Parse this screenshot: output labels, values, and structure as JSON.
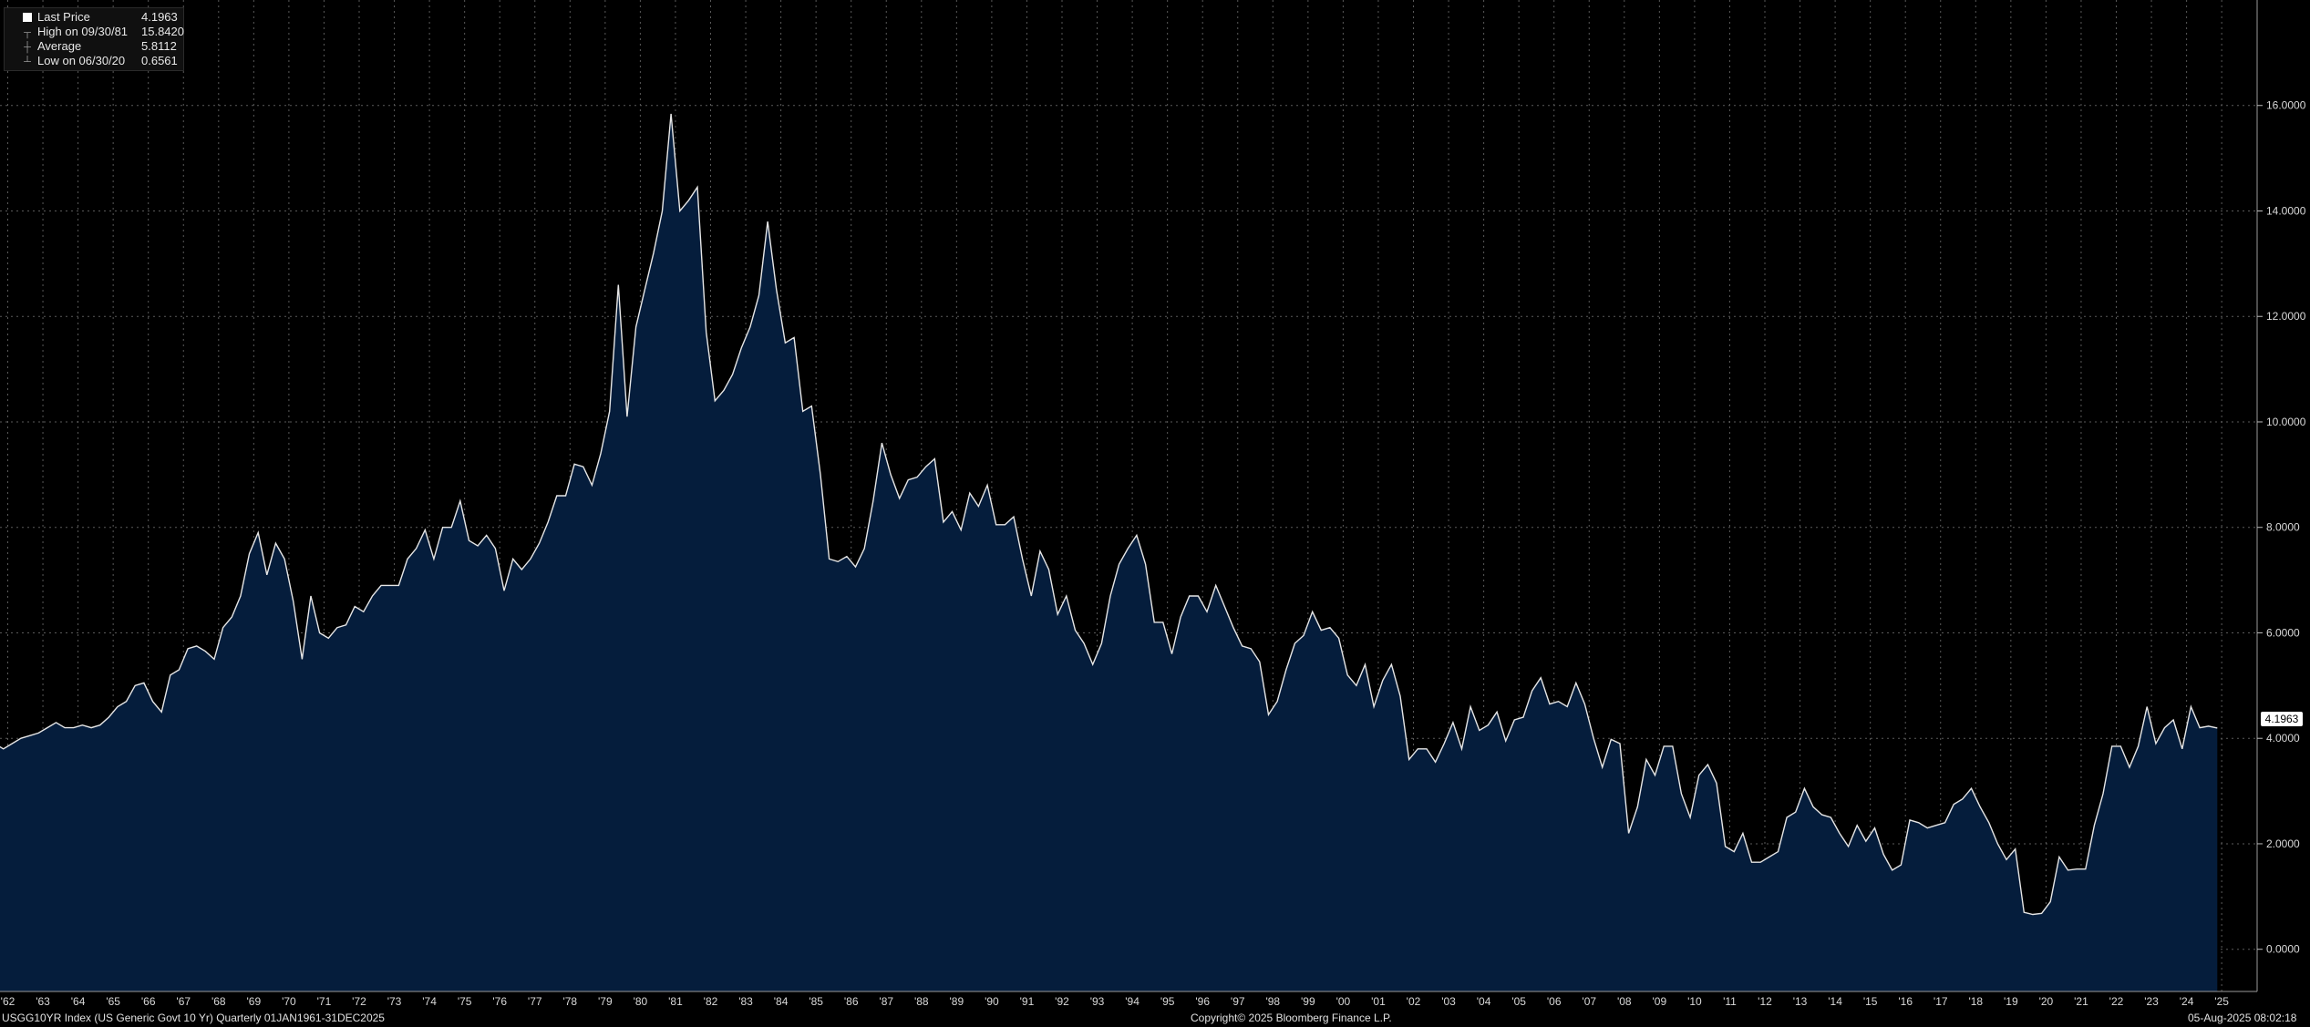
{
  "legend": {
    "last_price_label": "Last Price",
    "last_price_value": "4.1963",
    "high_label": "High on 09/30/81",
    "high_value": "15.8420",
    "average_label": "Average",
    "average_value": "5.8112",
    "low_label": "Low on 06/30/20",
    "low_value": "0.6561"
  },
  "footer": {
    "left": "USGG10YR Index (US Generic Govt 10 Yr)  Quarterly 01JAN1961-31DEC2025",
    "center": "Copyright© 2025 Bloomberg Finance L.P.",
    "right": "05-Aug-2025 08:02:18"
  },
  "colors": {
    "background": "#000000",
    "area_fill": "#051d3c",
    "line": "#e6e6e6",
    "grid": "#5a5a5a"
  },
  "chart_data": {
    "type": "area",
    "x_unit": "quarter",
    "x_start": "1961",
    "ylim": [
      -0.8,
      18
    ],
    "y_ticks": [
      "0.0000",
      "2.0000",
      "4.0000",
      "6.0000",
      "8.0000",
      "10.0000",
      "12.0000",
      "14.0000",
      "16.0000"
    ],
    "x_ticks": [
      "'62",
      "'63",
      "'64",
      "'65",
      "'66",
      "'67",
      "'68",
      "'69",
      "'70",
      "'71",
      "'72",
      "'73",
      "'74",
      "'75",
      "'76",
      "'77",
      "'78",
      "'79",
      "'80",
      "'81",
      "'82",
      "'83",
      "'84",
      "'85",
      "'86",
      "'87",
      "'88",
      "'89",
      "'90",
      "'91",
      "'92",
      "'93",
      "'94",
      "'95",
      "'96",
      "'97",
      "'98",
      "'99",
      "'00",
      "'01",
      "'02",
      "'03",
      "'04",
      "'05",
      "'06",
      "'07",
      "'08",
      "'09",
      "'10",
      "'11",
      "'12",
      "'13",
      "'14",
      "'15",
      "'16",
      "'17",
      "'18",
      "'19",
      "'20",
      "'21",
      "'22",
      "'23",
      "'24",
      "'25"
    ],
    "grid": true,
    "y_axis_side": "right",
    "last_value_label": "4.1963",
    "series": [
      {
        "values": [
          3.8,
          4.0,
          3.9,
          3.8,
          3.9,
          4.0,
          4.05,
          4.1,
          4.2,
          4.3,
          4.2,
          4.2,
          4.25,
          4.2,
          4.25,
          4.4,
          4.6,
          4.7,
          5.0,
          5.05,
          4.7,
          4.5,
          5.2,
          5.3,
          5.7,
          5.75,
          5.65,
          5.5,
          6.1,
          6.3,
          6.7,
          7.5,
          7.9,
          7.1,
          7.7,
          7.4,
          6.6,
          5.5,
          6.7,
          6.0,
          5.9,
          6.1,
          6.15,
          6.5,
          6.4,
          6.7,
          6.9,
          6.9,
          6.9,
          7.4,
          7.6,
          7.95,
          7.4,
          8.0,
          8.0,
          8.5,
          7.75,
          7.65,
          7.85,
          7.6,
          6.8,
          7.4,
          7.2,
          7.4,
          7.7,
          8.1,
          8.6,
          8.6,
          9.2,
          9.15,
          8.8,
          9.4,
          10.2,
          12.6,
          10.1,
          11.8,
          12.5,
          13.2,
          14.0,
          15.84,
          14.0,
          14.2,
          14.45,
          11.7,
          10.4,
          10.6,
          10.9,
          11.4,
          11.8,
          12.4,
          13.8,
          12.5,
          11.5,
          11.6,
          10.2,
          10.3,
          9.0,
          7.4,
          7.35,
          7.45,
          7.25,
          7.6,
          8.5,
          9.6,
          9.0,
          8.55,
          8.9,
          8.95,
          9.15,
          9.3,
          8.1,
          8.3,
          7.95,
          8.65,
          8.4,
          8.8,
          8.05,
          8.05,
          8.2,
          7.4,
          6.7,
          7.55,
          7.2,
          6.35,
          6.7,
          6.05,
          5.8,
          5.4,
          5.8,
          6.7,
          7.3,
          7.6,
          7.85,
          7.3,
          6.2,
          6.2,
          5.6,
          6.3,
          6.7,
          6.7,
          6.4,
          6.9,
          6.5,
          6.1,
          5.75,
          5.7,
          5.45,
          4.45,
          4.7,
          5.3,
          5.8,
          5.95,
          6.4,
          6.05,
          6.1,
          5.9,
          5.2,
          5.0,
          5.4,
          4.6,
          5.1,
          5.4,
          4.8,
          3.6,
          3.8,
          3.8,
          3.55,
          3.9,
          4.3,
          3.8,
          4.6,
          4.15,
          4.25,
          4.5,
          3.95,
          4.35,
          4.4,
          4.9,
          5.15,
          4.65,
          4.7,
          4.6,
          5.05,
          4.65,
          4.0,
          3.45,
          3.98,
          3.9,
          2.2,
          2.7,
          3.6,
          3.3,
          3.85,
          3.85,
          2.95,
          2.5,
          3.3,
          3.5,
          3.15,
          1.95,
          1.85,
          2.2,
          1.65,
          1.65,
          1.75,
          1.85,
          2.5,
          2.6,
          3.05,
          2.7,
          2.55,
          2.5,
          2.2,
          1.95,
          2.35,
          2.05,
          2.3,
          1.8,
          1.5,
          1.6,
          2.45,
          2.4,
          2.3,
          2.35,
          2.4,
          2.75,
          2.85,
          3.05,
          2.7,
          2.4,
          2.0,
          1.7,
          1.9,
          0.7,
          0.66,
          0.68,
          0.9,
          1.75,
          1.5,
          1.52,
          1.52,
          2.35,
          2.95,
          3.85,
          3.85,
          3.45,
          3.85,
          4.6,
          3.9,
          4.2,
          4.35,
          3.8,
          4.6,
          4.2,
          4.23,
          4.1963
        ]
      }
    ]
  }
}
